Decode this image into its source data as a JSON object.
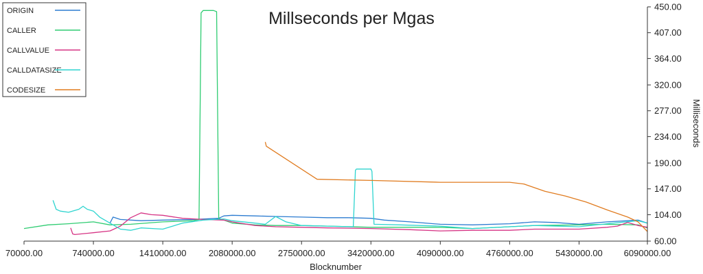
{
  "chart_data": {
    "type": "line",
    "title": "Millseconds per Mgas",
    "xlabel": "Blocknumber",
    "ylabel": "Milliseconds",
    "xlim": [
      70000,
      6090000
    ],
    "ylim": [
      60,
      450
    ],
    "x_ticks": [
      "70000.00",
      "740000.00",
      "1410000.00",
      "2080000.00",
      "2750000.00",
      "3420000.00",
      "4090000.00",
      "4760000.00",
      "5430000.00",
      "6090000.00"
    ],
    "y_ticks": [
      "60.00",
      "104.00",
      "147.00",
      "190.00",
      "234.00",
      "277.00",
      "320.00",
      "364.00",
      "407.00",
      "450.00"
    ],
    "x_tick_values": [
      70000,
      740000,
      1410000,
      2080000,
      2750000,
      3420000,
      4090000,
      4760000,
      5430000,
      6090000
    ],
    "y_tick_values": [
      60,
      104,
      147,
      190,
      234,
      277,
      320,
      364,
      407,
      450
    ],
    "grid": false,
    "legend_position": "top-left",
    "series": [
      {
        "name": "ORIGIN",
        "color": "#2b7bd0",
        "x": [
          900000,
          930000,
          1000000,
          1200000,
          1410000,
          1700000,
          1950000,
          2000000,
          2080000,
          2300000,
          2500000,
          2750000,
          3000000,
          3200000,
          3420000,
          3550000,
          3800000,
          4090000,
          4400000,
          4760000,
          5000000,
          5200000,
          5430000,
          5700000,
          6000000,
          6090000
        ],
        "y": [
          90,
          100,
          96,
          94,
          95,
          96,
          98,
          102,
          103,
          102,
          101,
          100,
          99,
          99,
          98,
          95,
          92,
          88,
          87,
          89,
          92,
          91,
          88,
          92,
          95,
          90
        ]
      },
      {
        "name": "CALLER",
        "color": "#2ecc71",
        "x": [
          70000,
          300000,
          500000,
          740000,
          900000,
          1100000,
          1410000,
          1700000,
          1760000,
          1780000,
          1800000,
          1900000,
          1930000,
          1950000,
          2080000,
          2300000,
          2500000,
          2750000,
          3000000,
          3420000,
          3700000,
          4090000,
          4400000,
          4760000,
          5000000,
          5430000,
          5700000,
          6000000,
          6090000
        ],
        "y": [
          81,
          87,
          89,
          92,
          87,
          88,
          92,
          94,
          96,
          440,
          444,
          444,
          442,
          98,
          90,
          87,
          86,
          86,
          85,
          83,
          83,
          83,
          81,
          84,
          86,
          87,
          88,
          87,
          82
        ]
      },
      {
        "name": "CALLVALUE",
        "color": "#d63384",
        "x": [
          520000,
          540000,
          560000,
          740000,
          900000,
          1000000,
          1100000,
          1200000,
          1300000,
          1410000,
          1600000,
          1800000,
          2000000,
          2080000,
          2300000,
          2500000,
          2750000,
          3000000,
          3420000,
          3800000,
          4090000,
          4400000,
          4760000,
          5000000,
          5430000,
          5700000,
          5800000,
          5900000,
          6000000,
          6090000
        ],
        "y": [
          82,
          72,
          71,
          74,
          77,
          85,
          99,
          107,
          104,
          103,
          98,
          96,
          95,
          92,
          86,
          84,
          83,
          82,
          81,
          79,
          77,
          78,
          78,
          80,
          80,
          83,
          85,
          91,
          86,
          83
        ]
      },
      {
        "name": "CALLDATASIZE",
        "color": "#2dd4cf",
        "x": [
          350000,
          380000,
          420000,
          500000,
          600000,
          640000,
          680000,
          740000,
          800000,
          900000,
          1000000,
          1100000,
          1200000,
          1410000,
          1600000,
          1800000,
          2000000,
          2080000,
          2300000,
          2400000,
          2500000,
          2600000,
          2750000,
          3000000,
          3250000,
          3270000,
          3280000,
          3420000,
          3430000,
          3450000,
          3700000,
          4090000,
          4400000,
          4760000,
          5000000,
          5430000,
          5700000,
          6000000,
          6090000
        ],
        "y": [
          128,
          113,
          110,
          108,
          113,
          118,
          113,
          110,
          100,
          90,
          80,
          78,
          82,
          80,
          90,
          95,
          97,
          94,
          90,
          88,
          101,
          92,
          86,
          85,
          84,
          178,
          180,
          180,
          176,
          88,
          87,
          85,
          81,
          84,
          86,
          84,
          89,
          94,
          90
        ]
      },
      {
        "name": "CODESIZE",
        "color": "#e07b1f",
        "x": [
          2400000,
          2410000,
          2900000,
          3420000,
          4090000,
          4760000,
          4900000,
          5100000,
          5300000,
          5500000,
          5700000,
          5900000,
          6000000,
          6090000
        ],
        "y": [
          225,
          218,
          163,
          161,
          158,
          158,
          155,
          143,
          135,
          125,
          112,
          100,
          92,
          76
        ]
      }
    ]
  }
}
